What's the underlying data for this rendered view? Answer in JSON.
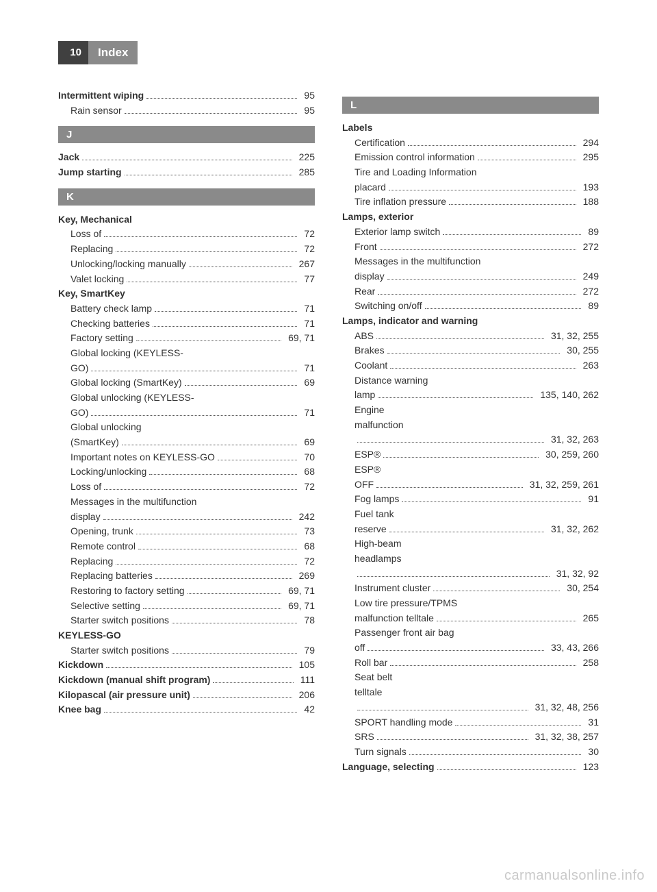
{
  "page_number": "10",
  "header_title": "Index",
  "watermark": "carmanualsonline.info",
  "colors": {
    "header_dark": "#404040",
    "header_gray": "#8a8a8a",
    "text": "#333333",
    "dots": "#555555",
    "watermark": "#c9c9c9",
    "background": "#ffffff"
  },
  "font_sizes": {
    "body": 14,
    "header": 17,
    "page_num": 15,
    "section": 15,
    "watermark": 20
  },
  "left_column": [
    {
      "type": "entry",
      "label": "Intermittent wiping",
      "bold": true,
      "page": "95"
    },
    {
      "type": "entry",
      "label": "Rain sensor",
      "sub": true,
      "page": "95"
    },
    {
      "type": "section",
      "letter": "J"
    },
    {
      "type": "entry",
      "label": "Jack",
      "bold": true,
      "page": "225"
    },
    {
      "type": "entry",
      "label": "Jump starting",
      "bold": true,
      "page": "285"
    },
    {
      "type": "section",
      "letter": "K"
    },
    {
      "type": "entry",
      "label": "Key, Mechanical",
      "bold": true,
      "noval": true
    },
    {
      "type": "entry",
      "label": "Loss of",
      "sub": true,
      "page": "72"
    },
    {
      "type": "entry",
      "label": "Replacing",
      "sub": true,
      "page": "72"
    },
    {
      "type": "entry",
      "label": "Unlocking/locking manually",
      "sub": true,
      "page": "267"
    },
    {
      "type": "entry",
      "label": "Valet locking",
      "sub": true,
      "page": "77"
    },
    {
      "type": "entry",
      "label": "Key, SmartKey",
      "bold": true,
      "noval": true
    },
    {
      "type": "entry",
      "label": "Battery check lamp",
      "sub": true,
      "page": "71"
    },
    {
      "type": "entry",
      "label": "Checking batteries",
      "sub": true,
      "page": "71"
    },
    {
      "type": "entry",
      "label": "Factory setting",
      "sub": true,
      "page": "69, 71"
    },
    {
      "type": "entry",
      "label": "Global locking (KEYLESS-",
      "sub": true,
      "noval": true
    },
    {
      "type": "entry",
      "label": "GO)",
      "sub": true,
      "page": "71"
    },
    {
      "type": "entry",
      "label": "Global locking (SmartKey)",
      "sub": true,
      "page": "69"
    },
    {
      "type": "entry",
      "label": "Global unlocking (KEYLESS-",
      "sub": true,
      "noval": true
    },
    {
      "type": "entry",
      "label": "GO)",
      "sub": true,
      "page": "71"
    },
    {
      "type": "entry",
      "label": "Global unlocking",
      "sub": true,
      "noval": true
    },
    {
      "type": "entry",
      "label": "(SmartKey)",
      "sub": true,
      "page": "69"
    },
    {
      "type": "entry",
      "label": "Important notes on KEYLESS-GO",
      "sub": true,
      "page": "70"
    },
    {
      "type": "entry",
      "label": "Locking/unlocking",
      "sub": true,
      "page": "68"
    },
    {
      "type": "entry",
      "label": "Loss of",
      "sub": true,
      "page": "72"
    },
    {
      "type": "entry",
      "label": "Messages in the multifunction",
      "sub": true,
      "noval": true
    },
    {
      "type": "entry",
      "label": "display",
      "sub": true,
      "page": "242"
    },
    {
      "type": "entry",
      "label": "Opening, trunk",
      "sub": true,
      "page": "73"
    },
    {
      "type": "entry",
      "label": "Remote control",
      "sub": true,
      "page": "68"
    },
    {
      "type": "entry",
      "label": "Replacing",
      "sub": true,
      "page": "72"
    },
    {
      "type": "entry",
      "label": "Replacing batteries",
      "sub": true,
      "page": "269"
    },
    {
      "type": "entry",
      "label": "Restoring to factory setting",
      "sub": true,
      "page": "69, 71"
    },
    {
      "type": "entry",
      "label": "Selective setting",
      "sub": true,
      "page": "69, 71"
    },
    {
      "type": "entry",
      "label": "Starter switch positions",
      "sub": true,
      "page": "78"
    },
    {
      "type": "entry",
      "label": "KEYLESS-GO",
      "bold": true,
      "noval": true
    },
    {
      "type": "entry",
      "label": "Starter switch positions",
      "sub": true,
      "page": "79"
    },
    {
      "type": "entry",
      "label": "Kickdown",
      "bold": true,
      "page": "105"
    },
    {
      "type": "entry",
      "label": "Kickdown (manual shift program)",
      "bold": true,
      "page": "111"
    },
    {
      "type": "entry",
      "label": "Kilopascal (air pressure unit)",
      "bold": true,
      "page": "206"
    },
    {
      "type": "entry",
      "label": "Knee bag",
      "bold": true,
      "page": "42"
    }
  ],
  "right_column": [
    {
      "type": "section",
      "letter": "L"
    },
    {
      "type": "entry",
      "label": "Labels",
      "bold": true,
      "noval": true
    },
    {
      "type": "entry",
      "label": "Certification",
      "sub": true,
      "page": "294"
    },
    {
      "type": "entry",
      "label": "Emission control information",
      "sub": true,
      "page": "295"
    },
    {
      "type": "entry",
      "label": "Tire and Loading Information",
      "sub": true,
      "noval": true
    },
    {
      "type": "entry",
      "label": "placard",
      "sub": true,
      "page": "193"
    },
    {
      "type": "entry",
      "label": "Tire inflation pressure",
      "sub": true,
      "page": "188"
    },
    {
      "type": "entry",
      "label": "Lamps, exterior",
      "bold": true,
      "noval": true
    },
    {
      "type": "entry",
      "label": "Exterior lamp switch",
      "sub": true,
      "page": "89"
    },
    {
      "type": "entry",
      "label": "Front",
      "sub": true,
      "page": "272"
    },
    {
      "type": "entry",
      "label": "Messages in the multifunction",
      "sub": true,
      "noval": true
    },
    {
      "type": "entry",
      "label": "display",
      "sub": true,
      "page": "249"
    },
    {
      "type": "entry",
      "label": "Rear",
      "sub": true,
      "page": "272"
    },
    {
      "type": "entry",
      "label": "Switching on/off",
      "sub": true,
      "page": "89"
    },
    {
      "type": "entry",
      "label": "Lamps, indicator and warning",
      "bold": true,
      "noval": true
    },
    {
      "type": "entry",
      "label": "ABS",
      "sub": true,
      "page": "31, 32, 255"
    },
    {
      "type": "entry",
      "label": "Brakes",
      "sub": true,
      "page": "30, 255"
    },
    {
      "type": "entry",
      "label": "Coolant",
      "sub": true,
      "page": "263"
    },
    {
      "type": "entry",
      "label": "Distance warning",
      "sub": true,
      "noval": true
    },
    {
      "type": "entry",
      "label": "lamp",
      "sub": true,
      "page": "135, 140, 262"
    },
    {
      "type": "entry",
      "label": "Engine",
      "sub": true,
      "noval": true
    },
    {
      "type": "entry",
      "label": "malfunction",
      "sub": true,
      "noval": true
    },
    {
      "type": "entry",
      "label": "",
      "continuation": true,
      "page": "31, 32, 263"
    },
    {
      "type": "entry",
      "label": "ESP®",
      "sub": true,
      "page": "30, 259, 260"
    },
    {
      "type": "entry",
      "label": "ESP®",
      "sub": true,
      "noval": true
    },
    {
      "type": "entry",
      "label": "OFF",
      "sub": true,
      "page": "31, 32, 259, 261"
    },
    {
      "type": "entry",
      "label": "Fog lamps",
      "sub": true,
      "page": "91"
    },
    {
      "type": "entry",
      "label": "Fuel tank",
      "sub": true,
      "noval": true
    },
    {
      "type": "entry",
      "label": "reserve",
      "sub": true,
      "page": "31, 32, 262"
    },
    {
      "type": "entry",
      "label": "High-beam",
      "sub": true,
      "noval": true
    },
    {
      "type": "entry",
      "label": "headlamps",
      "sub": true,
      "noval": true
    },
    {
      "type": "entry",
      "label": "",
      "continuation": true,
      "page": "31, 32, 92"
    },
    {
      "type": "entry",
      "label": "Instrument cluster",
      "sub": true,
      "page": "30, 254"
    },
    {
      "type": "entry",
      "label": "Low tire pressure/TPMS",
      "sub": true,
      "noval": true
    },
    {
      "type": "entry",
      "label": "malfunction telltale",
      "sub": true,
      "page": "265"
    },
    {
      "type": "entry",
      "label": "Passenger front air bag",
      "sub": true,
      "noval": true
    },
    {
      "type": "entry",
      "label": "off",
      "sub": true,
      "page": "33, 43, 266"
    },
    {
      "type": "entry",
      "label": "Roll bar",
      "sub": true,
      "page": "258"
    },
    {
      "type": "entry",
      "label": "Seat belt",
      "sub": true,
      "noval": true
    },
    {
      "type": "entry",
      "label": "telltale",
      "sub": true,
      "noval": true
    },
    {
      "type": "entry",
      "label": "",
      "continuation": true,
      "page": "31, 32, 48, 256"
    },
    {
      "type": "entry",
      "label": "SPORT handling mode",
      "sub": true,
      "page": "31"
    },
    {
      "type": "entry",
      "label": "SRS",
      "sub": true,
      "page": "31, 32, 38, 257"
    },
    {
      "type": "entry",
      "label": "Turn signals",
      "sub": true,
      "page": "30"
    },
    {
      "type": "entry",
      "label": "Language, selecting",
      "bold": true,
      "page": "123"
    }
  ]
}
